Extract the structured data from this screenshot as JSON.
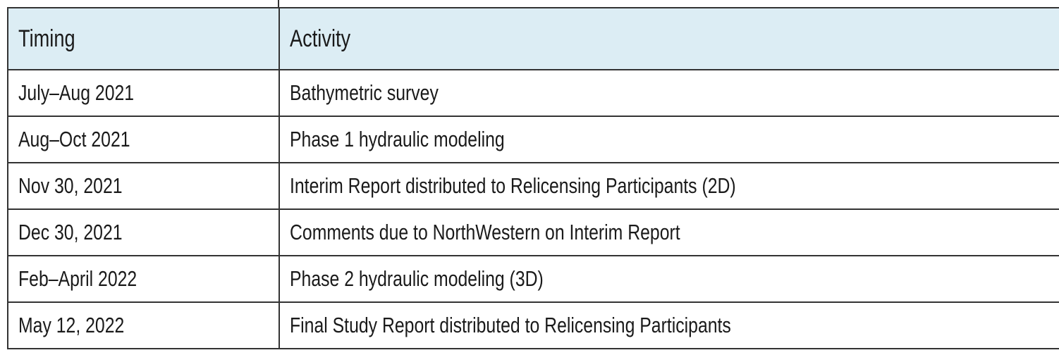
{
  "table": {
    "header": [
      "Timing",
      "Activity"
    ],
    "rows": [
      [
        "July–Aug 2021",
        "Bathymetric survey"
      ],
      [
        "Aug–Oct 2021",
        "Phase 1 hydraulic modeling"
      ],
      [
        "Nov 30, 2021",
        "Interim Report distributed to Relicensing Participants (2D)"
      ],
      [
        "Dec 30, 2021",
        "Comments due to NorthWestern on Interim Report"
      ],
      [
        "Feb–April 2022",
        "Phase 2 hydraulic modeling (3D)"
      ],
      [
        "May 12, 2022",
        "Final Study Report distributed to Relicensing Participants"
      ]
    ]
  }
}
